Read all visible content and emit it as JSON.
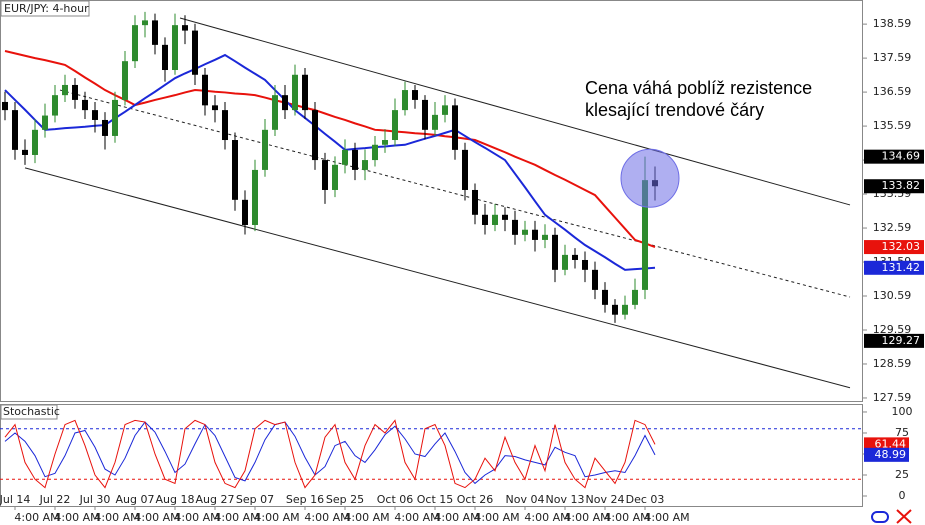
{
  "chart_data": [
    {
      "type": "candlestick",
      "title": "EUR/JPY: 4-hour",
      "categories": [
        null,
        "Jul 14",
        null,
        null,
        null,
        "Jul 22",
        null,
        null,
        null,
        "Jul 30",
        null,
        null,
        null,
        "Aug 07",
        null,
        null,
        null,
        "Aug 18",
        null,
        null,
        null,
        "Aug 27",
        null,
        null,
        null,
        "Sep 07",
        null,
        null,
        null,
        null,
        "Sep 16",
        null,
        null,
        null,
        "Sep 25",
        null,
        null,
        null,
        null,
        "Oct 06",
        null,
        null,
        null,
        "Oct 15",
        null,
        null,
        null,
        "Oct 26",
        null,
        null,
        null,
        null,
        "Nov 04",
        null,
        null,
        null,
        "Nov 13",
        null,
        null,
        null,
        "Nov 24",
        null,
        null,
        null,
        "Dec 03",
        null
      ],
      "time_labels": [
        "4:00 AM",
        "4:00 AM",
        "4:00 AM",
        "4:00 AM",
        "4:00 AM",
        "4:00 AM",
        "4:00 AM",
        "4:00 AM",
        "4:00 AM",
        "4:00 AM",
        "4:00 AM",
        "4:00 AM",
        "4:00 AM",
        "4:00 AM",
        "4:00 AM",
        "4:00 AM"
      ],
      "ohlc": [
        [
          136.3,
          136.6,
          135.76,
          136.06
        ],
        [
          136.06,
          136.3,
          134.6,
          134.89
        ],
        [
          134.89,
          135.2,
          134.45,
          134.74
        ],
        [
          134.74,
          135.8,
          134.5,
          135.48
        ],
        [
          135.48,
          136.25,
          135.25,
          135.9
        ],
        [
          135.9,
          136.8,
          135.7,
          136.5
        ],
        [
          136.5,
          137.1,
          136.3,
          136.8
        ],
        [
          136.8,
          137.0,
          136.1,
          136.36
        ],
        [
          136.36,
          136.6,
          135.8,
          136.06
        ],
        [
          136.06,
          136.3,
          135.4,
          135.77
        ],
        [
          135.77,
          136.0,
          134.9,
          135.3
        ],
        [
          135.3,
          136.6,
          135.1,
          136.36
        ],
        [
          136.36,
          137.8,
          136.2,
          137.5
        ],
        [
          137.5,
          138.85,
          137.3,
          138.56
        ],
        [
          138.56,
          138.95,
          138.2,
          138.7
        ],
        [
          138.7,
          138.9,
          137.7,
          137.98
        ],
        [
          137.98,
          138.2,
          136.9,
          137.24
        ],
        [
          137.24,
          138.9,
          137.1,
          138.56
        ],
        [
          138.56,
          138.85,
          138.0,
          138.4
        ],
        [
          138.4,
          138.6,
          136.8,
          137.1
        ],
        [
          137.1,
          137.3,
          135.9,
          136.2
        ],
        [
          136.2,
          136.5,
          135.7,
          136.06
        ],
        [
          136.06,
          136.3,
          134.9,
          135.18
        ],
        [
          135.18,
          135.4,
          133.1,
          133.42
        ],
        [
          133.42,
          133.7,
          132.4,
          132.68
        ],
        [
          132.68,
          134.6,
          132.5,
          134.3
        ],
        [
          134.3,
          135.8,
          134.1,
          135.48
        ],
        [
          135.48,
          136.8,
          135.3,
          136.5
        ],
        [
          136.5,
          136.8,
          135.8,
          136.06
        ],
        [
          136.06,
          137.4,
          135.9,
          137.1
        ],
        [
          137.1,
          137.3,
          135.8,
          136.06
        ],
        [
          136.06,
          136.3,
          134.3,
          134.59
        ],
        [
          134.59,
          134.8,
          133.3,
          133.71
        ],
        [
          133.71,
          134.7,
          133.5,
          134.45
        ],
        [
          134.45,
          135.2,
          134.2,
          134.89
        ],
        [
          134.89,
          135.1,
          134.0,
          134.3
        ],
        [
          134.3,
          134.9,
          134.0,
          134.59
        ],
        [
          134.59,
          135.3,
          134.4,
          135.04
        ],
        [
          135.04,
          135.5,
          134.8,
          135.18
        ],
        [
          135.18,
          136.4,
          135.0,
          136.06
        ],
        [
          136.06,
          136.9,
          135.9,
          136.65
        ],
        [
          136.65,
          136.8,
          136.1,
          136.36
        ],
        [
          136.36,
          136.5,
          135.2,
          135.48
        ],
        [
          135.48,
          136.3,
          135.3,
          135.92
        ],
        [
          135.92,
          136.5,
          135.7,
          136.2
        ],
        [
          136.2,
          136.4,
          134.6,
          134.89
        ],
        [
          134.89,
          135.1,
          133.4,
          133.71
        ],
        [
          133.71,
          133.9,
          132.7,
          132.98
        ],
        [
          132.98,
          133.3,
          132.4,
          132.68
        ],
        [
          132.68,
          133.3,
          132.5,
          132.98
        ],
        [
          132.98,
          133.2,
          132.5,
          132.83
        ],
        [
          132.83,
          133.1,
          132.1,
          132.39
        ],
        [
          132.39,
          132.8,
          132.2,
          132.54
        ],
        [
          132.54,
          132.8,
          131.9,
          132.24
        ],
        [
          132.24,
          132.7,
          132.0,
          132.39
        ],
        [
          132.39,
          132.6,
          131.0,
          131.36
        ],
        [
          131.36,
          132.1,
          131.2,
          131.8
        ],
        [
          131.8,
          132.0,
          131.4,
          131.65
        ],
        [
          131.65,
          131.9,
          131.0,
          131.36
        ],
        [
          131.36,
          131.6,
          130.5,
          130.77
        ],
        [
          130.77,
          131.0,
          130.1,
          130.33
        ],
        [
          130.33,
          130.5,
          129.8,
          130.04
        ],
        [
          130.04,
          130.6,
          129.9,
          130.33
        ],
        [
          130.33,
          131.1,
          130.2,
          130.77
        ],
        [
          130.77,
          134.69,
          130.5,
          134.0
        ],
        [
          134.0,
          134.4,
          133.4,
          133.82
        ]
      ],
      "up_color": "#2e8b2e",
      "down_color": "#000000",
      "moving_averages": [
        {
          "color": "#e8120c",
          "values": [
            137.8,
            137.73,
            137.66,
            137.59,
            137.53,
            137.46,
            137.39,
            137.21,
            137.02,
            136.84,
            136.65,
            136.5,
            136.36,
            136.21,
            136.28,
            136.36,
            136.43,
            136.5,
            136.58,
            136.65,
            136.63,
            136.6,
            136.58,
            136.55,
            136.53,
            136.5,
            136.43,
            136.35,
            136.28,
            136.21,
            136.13,
            136.06,
            135.96,
            135.86,
            135.77,
            135.67,
            135.58,
            135.48,
            135.46,
            135.43,
            135.41,
            135.38,
            135.36,
            135.33,
            135.29,
            135.26,
            135.22,
            135.18,
            135.06,
            134.94,
            134.82,
            134.69,
            134.57,
            134.45,
            134.3,
            134.15,
            134.01,
            133.86,
            133.71,
            133.56,
            133.23,
            132.9,
            132.57,
            132.24,
            132.14,
            132.03
          ]
        },
        {
          "color": "#1b28d8",
          "values": [
            136.65,
            136.36,
            136.07,
            135.77,
            135.48,
            135.5,
            135.53,
            135.55,
            135.57,
            135.6,
            135.62,
            135.82,
            136.01,
            136.21,
            136.41,
            136.6,
            136.8,
            137.0,
            137.14,
            137.27,
            137.41,
            137.54,
            137.68,
            137.5,
            137.31,
            137.13,
            136.95,
            136.65,
            136.36,
            136.06,
            135.83,
            135.6,
            135.36,
            135.13,
            134.89,
            134.92,
            134.94,
            134.97,
            134.99,
            135.02,
            135.04,
            135.13,
            135.22,
            135.3,
            135.39,
            135.48,
            135.3,
            135.12,
            134.95,
            134.77,
            134.59,
            134.19,
            133.79,
            133.38,
            132.98,
            132.76,
            132.54,
            132.31,
            132.09,
            131.91,
            131.73,
            131.54,
            131.36,
            131.38,
            131.4,
            131.42
          ]
        }
      ],
      "trend_lines": [
        {
          "start": 138.77,
          "end": 133.27,
          "dashed": false
        },
        {
          "start": 136.65,
          "end": 130.56,
          "dashed": true
        },
        {
          "start": 134.36,
          "end": 127.89,
          "dashed": false
        }
      ],
      "price_markers": [
        {
          "value": 134.69,
          "color": "#000000"
        },
        {
          "value": 129.27,
          "color": "#000000"
        }
      ],
      "annotation": [
        "Cena váhá poblíž rezistence",
        "klesající trendové čáry"
      ],
      "highlight_color": "#6e6ee6",
      "ylim": [
        127.53,
        139.3
      ],
      "yticks": [
        138.59,
        137.59,
        136.59,
        135.59,
        134.59,
        133.59,
        132.59,
        131.59,
        130.59,
        129.59,
        128.59,
        127.59
      ]
    },
    {
      "type": "stochastic",
      "title": "Stochastic",
      "series": [
        {
          "color": "#e8120c",
          "values": [
            70,
            85,
            40,
            20,
            10,
            50,
            85,
            90,
            60,
            25,
            10,
            40,
            85,
            90,
            88,
            50,
            20,
            15,
            80,
            90,
            85,
            40,
            15,
            10,
            30,
            80,
            90,
            85,
            88,
            40,
            10,
            25,
            70,
            85,
            40,
            20,
            60,
            85,
            75,
            90,
            40,
            20,
            80,
            85,
            60,
            15,
            10,
            20,
            45,
            30,
            70,
            40,
            20,
            60,
            30,
            85,
            40,
            20,
            10,
            45,
            30,
            15,
            40,
            90,
            85,
            61.44
          ]
        },
        {
          "color": "#1b28d8",
          "values": [
            65,
            75,
            65,
            48,
            23,
            27,
            48,
            75,
            78,
            58,
            32,
            25,
            45,
            72,
            88,
            76,
            53,
            28,
            38,
            62,
            85,
            72,
            47,
            22,
            18,
            40,
            67,
            85,
            88,
            71,
            46,
            25,
            35,
            60,
            65,
            48,
            40,
            55,
            73,
            83,
            68,
            50,
            47,
            62,
            75,
            53,
            28,
            15,
            25,
            32,
            48,
            47,
            43,
            40,
            37,
            58,
            52,
            48,
            23,
            25,
            28,
            30,
            28,
            48,
            72,
            48.99
          ]
        }
      ],
      "levels": [
        {
          "value": 80,
          "color": "#1b28d8"
        },
        {
          "value": 20,
          "color": "#e8120c"
        }
      ],
      "ylim": [
        -10.7,
        108.3
      ],
      "yticks": [
        100,
        75,
        50,
        25,
        0
      ]
    }
  ]
}
